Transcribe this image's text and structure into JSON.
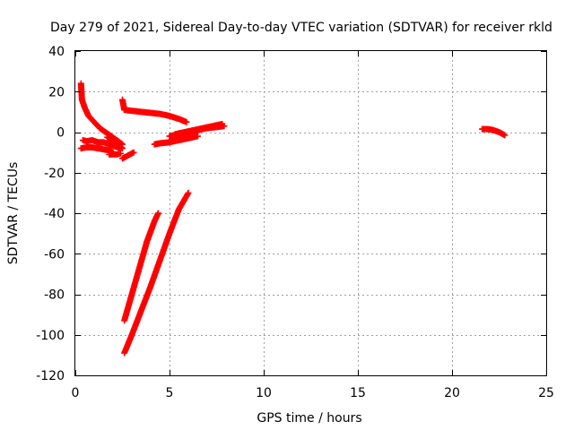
{
  "chart_data": {
    "type": "scatter",
    "title": "Day 279 of 2021, Sidereal Day-to-day VTEC variation (SDTVAR) for receiver rkld",
    "xlabel": "GPS time / hours",
    "ylabel": "SDTVAR / TECUs",
    "xlim": [
      0,
      25
    ],
    "ylim": [
      -120,
      40
    ],
    "xticks": [
      0,
      5,
      10,
      15,
      20,
      25
    ],
    "yticks": [
      -120,
      -100,
      -80,
      -60,
      -40,
      -20,
      0,
      20,
      40
    ],
    "grid": true,
    "marker": "plus",
    "series": [
      {
        "color": "#ff0000",
        "tracks": [
          {
            "x": [
              0.3,
              0.35,
              0.5,
              0.7,
              1.0,
              1.3,
              1.6,
              1.9,
              2.2,
              2.5
            ],
            "y": [
              24,
              16,
              12,
              8,
              5,
              2,
              0,
              -2,
              -4,
              -6
            ]
          },
          {
            "x": [
              0.4,
              0.6,
              0.9,
              1.2,
              1.5,
              1.8,
              2.1,
              2.4
            ],
            "y": [
              -4,
              -4.5,
              -4,
              -5,
              -5,
              -6,
              -7,
              -8
            ]
          },
          {
            "x": [
              0.3,
              0.6,
              0.9,
              1.2,
              1.5,
              1.8,
              2.0
            ],
            "y": [
              -8,
              -7.5,
              -7.5,
              -8,
              -8.5,
              -9,
              -10
            ]
          },
          {
            "x": [
              1.8,
              2.0,
              2.2,
              2.4
            ],
            "y": [
              -11,
              -11,
              -11,
              -10.5
            ]
          },
          {
            "x": [
              2.5,
              2.8,
              3.1
            ],
            "y": [
              -13,
              -11.5,
              -10
            ]
          },
          {
            "x": [
              1.7,
              1.9,
              2.1,
              2.3,
              2.5
            ],
            "y": [
              -2.5,
              -3.5,
              -5,
              -6.5,
              -8
            ]
          },
          {
            "x": [
              2.5,
              2.6,
              3.0,
              3.5,
              4.0,
              4.5,
              5.0,
              5.5,
              5.9
            ],
            "y": [
              16,
              11,
              10.5,
              10,
              9.5,
              9,
              8,
              6.5,
              5
            ]
          },
          {
            "x": [
              4.2,
              4.5,
              5.0,
              5.5,
              6.0,
              6.5
            ],
            "y": [
              -6,
              -5.5,
              -5,
              -4,
              -3,
              -2
            ]
          },
          {
            "x": [
              5.0,
              5.5,
              6.0,
              6.5,
              7.0,
              7.5,
              7.9
            ],
            "y": [
              -2,
              -1,
              0,
              1,
              2,
              2.5,
              3
            ]
          },
          {
            "x": [
              5.3,
              5.8,
              6.3,
              6.8,
              7.3,
              7.8
            ],
            "y": [
              -1,
              0,
              1,
              2,
              3,
              4
            ]
          },
          {
            "x": [
              2.6,
              3.0,
              3.4,
              3.8,
              4.2,
              4.4
            ],
            "y": [
              -93,
              -80,
              -67,
              -54,
              -44,
              -40
            ]
          },
          {
            "x": [
              2.6,
              3.0,
              3.5,
              4.0,
              4.5,
              5.0,
              5.5,
              6.0
            ],
            "y": [
              -109,
              -100,
              -88,
              -76,
              -63,
              -50,
              -38,
              -30
            ]
          },
          {
            "x": [
              21.6,
              21.9,
              22.2,
              22.5,
              22.8
            ],
            "y": [
              1.5,
              1.5,
              1,
              0,
              -1.5
            ]
          }
        ]
      }
    ]
  }
}
